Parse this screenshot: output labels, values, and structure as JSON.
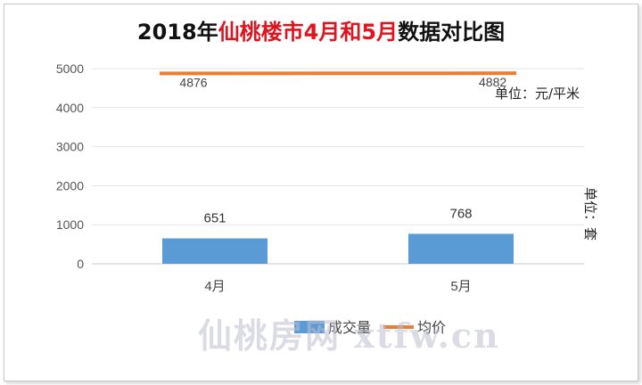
{
  "chart_data": {
    "type": "bar",
    "title_parts": [
      {
        "text": "2018年",
        "color": "#111111"
      },
      {
        "text": "仙桃楼市4月和5月",
        "color": "#e0141e"
      },
      {
        "text": "数据对比图",
        "color": "#111111"
      }
    ],
    "categories": [
      "4月",
      "5月"
    ],
    "ylim": [
      0,
      5000
    ],
    "yticks": [
      "0",
      "1000",
      "2000",
      "3000",
      "4000",
      "5000"
    ],
    "series": [
      {
        "name": "成交量",
        "type": "bar",
        "color": "#5b9bd5",
        "values": [
          651,
          768
        ]
      },
      {
        "name": "均价",
        "type": "line",
        "color": "#ed7d31",
        "values": [
          4876,
          4882
        ]
      }
    ],
    "grid": true,
    "legend_position": "bottom",
    "unit_right_top": "单位：元/平米",
    "unit_right_vertical": "单位：套",
    "watermark": "仙桃房网 xtfw.cn"
  }
}
